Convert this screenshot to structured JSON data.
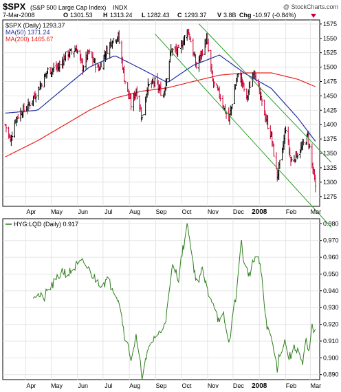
{
  "header": {
    "symbol": "$SPX",
    "symbol_desc": "(S&P 500 Large Cap Index)",
    "exchange": "INDX",
    "watermark": "@ StockCharts.com",
    "date": "7-Mar-2008",
    "open_label": "O",
    "open": "1301.53",
    "high_label": "H",
    "high": "1313.24",
    "low_label": "L",
    "low": "1282.43",
    "close_label": "C",
    "close": "1293.37",
    "volume_label": "V",
    "volume": "3.8B",
    "change_label": "Chg",
    "change": "-10.97 (-0.84%)"
  },
  "legend_top": {
    "price": "$SPX (Daily) 1293.37",
    "ma50": "MA(50) 1371.24",
    "ma200": "MA(200) 1465.67"
  },
  "legend_bottom": {
    "ratio": "HYG:LQD (Daily) 0.917"
  },
  "colors": {
    "up_bar": "#000000",
    "down_bar": "#cc0033",
    "ma50": "#1f2f9f",
    "ma200": "#e8201c",
    "channel": "#2a9a2a",
    "ratio": "#2e7d1a",
    "grid": "#e4e4e4"
  },
  "x_labels": [
    "Apr",
    "May",
    "Jun",
    "Jul",
    "Aug",
    "Sep",
    "Oct",
    "Nov",
    "Dec",
    "2008",
    "Feb",
    "Mar"
  ],
  "chart_data": [
    {
      "type": "ohlc",
      "title": "$SPX (S&P 500 Large Cap Index)",
      "ylim": [
        1258,
        1582
      ],
      "yticks": [
        "1275",
        "1300",
        "1325",
        "1350",
        "1375",
        "1400",
        "1425",
        "1450",
        "1475",
        "1500",
        "1525",
        "1550",
        "1575"
      ],
      "price_anchors": [
        [
          "2007-03-08",
          1400
        ],
        [
          "2007-03-14",
          1372
        ],
        [
          "2007-03-20",
          1410
        ],
        [
          "2007-03-27",
          1423
        ],
        [
          "2007-04-03",
          1430
        ],
        [
          "2007-04-16",
          1462
        ],
        [
          "2007-04-27",
          1494
        ],
        [
          "2007-05-10",
          1500
        ],
        [
          "2007-05-18",
          1520
        ],
        [
          "2007-05-31",
          1532
        ],
        [
          "2007-06-07",
          1500
        ],
        [
          "2007-06-14",
          1525
        ],
        [
          "2007-06-26",
          1496
        ],
        [
          "2007-07-03",
          1522
        ],
        [
          "2007-07-12",
          1548
        ],
        [
          "2007-07-19",
          1553
        ],
        [
          "2007-07-26",
          1482
        ],
        [
          "2007-08-03",
          1434
        ],
        [
          "2007-08-09",
          1460
        ],
        [
          "2007-08-16",
          1411
        ],
        [
          "2007-08-22",
          1465
        ],
        [
          "2007-08-31",
          1474
        ],
        [
          "2007-09-10",
          1450
        ],
        [
          "2007-09-19",
          1530
        ],
        [
          "2007-09-28",
          1527
        ],
        [
          "2007-10-09",
          1565
        ],
        [
          "2007-10-19",
          1500
        ],
        [
          "2007-10-31",
          1549
        ],
        [
          "2007-11-07",
          1475
        ],
        [
          "2007-11-15",
          1452
        ],
        [
          "2007-11-26",
          1407
        ],
        [
          "2007-12-06",
          1485
        ],
        [
          "2007-12-11",
          1478
        ],
        [
          "2007-12-17",
          1445
        ],
        [
          "2007-12-26",
          1497
        ],
        [
          "2008-01-02",
          1447
        ],
        [
          "2008-01-09",
          1409
        ],
        [
          "2008-01-15",
          1380
        ],
        [
          "2008-01-22",
          1310
        ],
        [
          "2008-01-28",
          1353
        ],
        [
          "2008-02-01",
          1395
        ],
        [
          "2008-02-07",
          1336
        ],
        [
          "2008-02-14",
          1348
        ],
        [
          "2008-02-20",
          1360
        ],
        [
          "2008-02-27",
          1380
        ],
        [
          "2008-03-03",
          1331
        ],
        [
          "2008-03-07",
          1293
        ]
      ],
      "ma50_anchors": [
        [
          "2007-03-08",
          1420
        ],
        [
          "2007-04-15",
          1425
        ],
        [
          "2007-05-15",
          1462
        ],
        [
          "2007-06-15",
          1500
        ],
        [
          "2007-07-15",
          1520
        ],
        [
          "2007-08-15",
          1497
        ],
        [
          "2007-09-15",
          1473
        ],
        [
          "2007-10-15",
          1503
        ],
        [
          "2007-11-15",
          1521
        ],
        [
          "2007-12-15",
          1489
        ],
        [
          "2008-01-15",
          1463
        ],
        [
          "2008-02-15",
          1412
        ],
        [
          "2008-03-07",
          1371
        ]
      ],
      "ma200_anchors": [
        [
          "2007-03-08",
          1344
        ],
        [
          "2007-04-15",
          1372
        ],
        [
          "2007-05-15",
          1398
        ],
        [
          "2007-06-15",
          1425
        ],
        [
          "2007-07-15",
          1446
        ],
        [
          "2007-08-15",
          1458
        ],
        [
          "2007-09-15",
          1464
        ],
        [
          "2007-10-15",
          1475
        ],
        [
          "2007-11-15",
          1486
        ],
        [
          "2007-12-15",
          1490
        ],
        [
          "2008-01-15",
          1490
        ],
        [
          "2008-02-15",
          1479
        ],
        [
          "2008-03-07",
          1466
        ]
      ],
      "channel_upper": [
        [
          "2007-10-22",
          1575
        ],
        [
          "2008-03-11",
          1368
        ]
      ],
      "channel_lower": [
        [
          "2007-08-31",
          1558
        ],
        [
          "2008-03-11",
          1255
        ]
      ],
      "last": {
        "open": 1301.53,
        "high": 1313.24,
        "low": 1282.43,
        "close": 1293.37
      }
    },
    {
      "type": "line",
      "title": "HYG:LQD (Daily)",
      "ylim": [
        0.887,
        0.983
      ],
      "yticks": [
        "0.890",
        "0.900",
        "0.910",
        "0.920",
        "0.930",
        "0.940",
        "0.950",
        "0.960",
        "0.970",
        "0.980"
      ],
      "anchors": [
        [
          "2007-04-10",
          0.938
        ],
        [
          "2007-04-17",
          0.937
        ],
        [
          "2007-04-22",
          0.935
        ],
        [
          "2007-04-27",
          0.94
        ],
        [
          "2007-05-07",
          0.946
        ],
        [
          "2007-05-14",
          0.952
        ],
        [
          "2007-05-21",
          0.95
        ],
        [
          "2007-05-31",
          0.955
        ],
        [
          "2007-06-08",
          0.957
        ],
        [
          "2007-06-15",
          0.952
        ],
        [
          "2007-06-22",
          0.947
        ],
        [
          "2007-06-29",
          0.944
        ],
        [
          "2007-07-06",
          0.946
        ],
        [
          "2007-07-13",
          0.942
        ],
        [
          "2007-07-20",
          0.934
        ],
        [
          "2007-07-26",
          0.915
        ],
        [
          "2007-08-03",
          0.9
        ],
        [
          "2007-08-09",
          0.912
        ],
        [
          "2007-08-13",
          0.898
        ],
        [
          "2007-08-16",
          0.89
        ],
        [
          "2007-08-24",
          0.905
        ],
        [
          "2007-08-31",
          0.913
        ],
        [
          "2007-09-07",
          0.915
        ],
        [
          "2007-09-14",
          0.926
        ],
        [
          "2007-09-21",
          0.955
        ],
        [
          "2007-09-28",
          0.948
        ],
        [
          "2007-10-02",
          0.962
        ],
        [
          "2007-10-09",
          0.98
        ],
        [
          "2007-10-12",
          0.966
        ],
        [
          "2007-10-19",
          0.945
        ],
        [
          "2007-10-26",
          0.952
        ],
        [
          "2007-11-01",
          0.94
        ],
        [
          "2007-11-09",
          0.932
        ],
        [
          "2007-11-15",
          0.92
        ],
        [
          "2007-11-20",
          0.925
        ],
        [
          "2007-11-26",
          0.908
        ],
        [
          "2007-12-03",
          0.932
        ],
        [
          "2007-12-07",
          0.948
        ],
        [
          "2007-12-11",
          0.971
        ],
        [
          "2007-12-14",
          0.955
        ],
        [
          "2007-12-20",
          0.95
        ],
        [
          "2007-12-27",
          0.96
        ],
        [
          "2008-01-02",
          0.956
        ],
        [
          "2008-01-07",
          0.93
        ],
        [
          "2008-01-11",
          0.916
        ],
        [
          "2008-01-15",
          0.912
        ],
        [
          "2008-01-18",
          0.904
        ],
        [
          "2008-01-22",
          0.894
        ],
        [
          "2008-01-25",
          0.903
        ],
        [
          "2008-01-31",
          0.91
        ],
        [
          "2008-02-05",
          0.9
        ],
        [
          "2008-02-11",
          0.905
        ],
        [
          "2008-02-15",
          0.906
        ],
        [
          "2008-02-21",
          0.895
        ],
        [
          "2008-02-25",
          0.91
        ],
        [
          "2008-02-28",
          0.902
        ],
        [
          "2008-03-03",
          0.918
        ],
        [
          "2008-03-07",
          0.917
        ]
      ]
    }
  ]
}
